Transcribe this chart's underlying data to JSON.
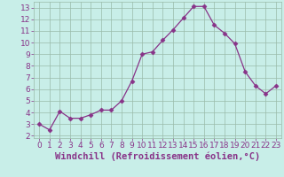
{
  "x": [
    0,
    1,
    2,
    3,
    4,
    5,
    6,
    7,
    8,
    9,
    10,
    11,
    12,
    13,
    14,
    15,
    16,
    17,
    18,
    19,
    20,
    21,
    22,
    23
  ],
  "y": [
    3.0,
    2.5,
    4.1,
    3.5,
    3.5,
    3.8,
    4.2,
    4.2,
    5.0,
    6.7,
    9.0,
    9.2,
    10.2,
    11.1,
    12.1,
    13.1,
    13.1,
    11.5,
    10.8,
    9.9,
    7.5,
    6.3,
    5.6,
    6.3
  ],
  "line_color": "#883388",
  "marker": "D",
  "marker_size": 2.5,
  "bg_color": "#c8eee8",
  "grid_color": "#99bbaa",
  "xlabel": "Windchill (Refroidissement éolien,°C)",
  "xlim": [
    -0.5,
    23.5
  ],
  "ylim": [
    1.8,
    13.5
  ],
  "yticks": [
    2,
    3,
    4,
    5,
    6,
    7,
    8,
    9,
    10,
    11,
    12,
    13
  ],
  "xticks": [
    0,
    1,
    2,
    3,
    4,
    5,
    6,
    7,
    8,
    9,
    10,
    11,
    12,
    13,
    14,
    15,
    16,
    17,
    18,
    19,
    20,
    21,
    22,
    23
  ],
  "tick_color": "#883388",
  "label_color": "#883388",
  "tick_fontsize": 6.5,
  "xlabel_fontsize": 7.5
}
